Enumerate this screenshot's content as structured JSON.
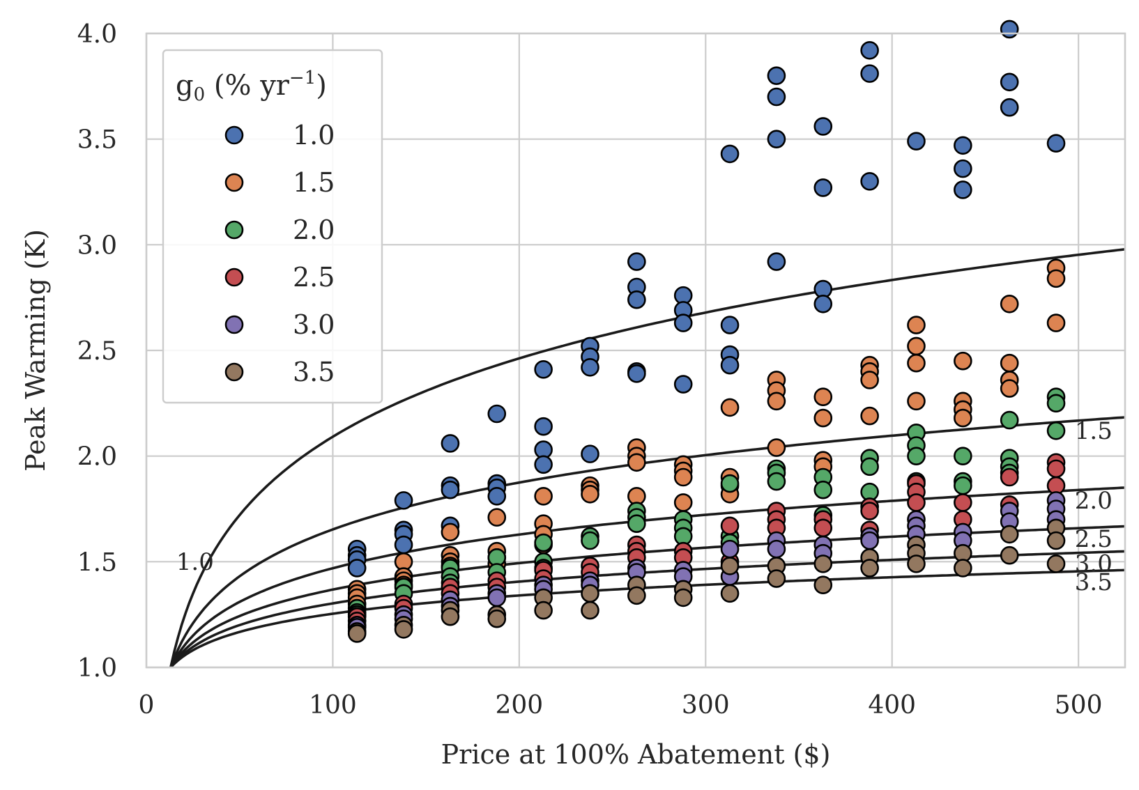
{
  "chart_data": {
    "type": "scatter",
    "xlabel": "Price at 100% Abatement ($)",
    "ylabel": "Peak Warming (K)",
    "xlim": [
      0,
      525
    ],
    "ylim": [
      1.0,
      4.0
    ],
    "xticks": [
      "0",
      "100",
      "200",
      "300",
      "400",
      "500"
    ],
    "yticks": [
      "1.0",
      "1.5",
      "2.0",
      "2.5",
      "3.0",
      "3.5",
      "4.0"
    ],
    "grid": true,
    "legend": {
      "title_main": "g",
      "title_sub": "0",
      "title_rest_prefix": " (% yr",
      "title_sup": "−1",
      "title_rest_suffix": ")",
      "placement": "top-left"
    },
    "series": [
      {
        "name": "1.0",
        "color": "#4c72b0",
        "points": [
          [
            113,
            1.56
          ],
          [
            113,
            1.53
          ],
          [
            113,
            1.51
          ],
          [
            113,
            1.47
          ],
          [
            138,
            1.79
          ],
          [
            138,
            1.65
          ],
          [
            138,
            1.63
          ],
          [
            138,
            1.58
          ],
          [
            163,
            2.06
          ],
          [
            163,
            1.86
          ],
          [
            163,
            1.84
          ],
          [
            163,
            1.67
          ],
          [
            188,
            2.2
          ],
          [
            188,
            1.87
          ],
          [
            188,
            1.85
          ],
          [
            188,
            1.81
          ],
          [
            213,
            2.41
          ],
          [
            213,
            2.14
          ],
          [
            213,
            2.03
          ],
          [
            213,
            1.96
          ],
          [
            238,
            2.52
          ],
          [
            238,
            2.47
          ],
          [
            238,
            2.42
          ],
          [
            238,
            2.01
          ],
          [
            263,
            2.92
          ],
          [
            263,
            2.8
          ],
          [
            263,
            2.74
          ],
          [
            263,
            2.4
          ],
          [
            263,
            2.39
          ],
          [
            288,
            2.76
          ],
          [
            288,
            2.69
          ],
          [
            288,
            2.63
          ],
          [
            288,
            2.34
          ],
          [
            313,
            3.43
          ],
          [
            313,
            2.62
          ],
          [
            313,
            2.48
          ],
          [
            313,
            2.43
          ],
          [
            338,
            3.8
          ],
          [
            338,
            3.7
          ],
          [
            338,
            3.5
          ],
          [
            338,
            2.92
          ],
          [
            363,
            3.56
          ],
          [
            363,
            3.27
          ],
          [
            363,
            2.79
          ],
          [
            363,
            2.72
          ],
          [
            388,
            3.92
          ],
          [
            388,
            3.81
          ],
          [
            388,
            3.3
          ],
          [
            413,
            3.49
          ],
          [
            438,
            3.47
          ],
          [
            438,
            3.36
          ],
          [
            438,
            3.26
          ],
          [
            463,
            4.02
          ],
          [
            463,
            3.77
          ],
          [
            463,
            3.65
          ],
          [
            488,
            3.48
          ]
        ]
      },
      {
        "name": "1.5",
        "color": "#dd8452",
        "points": [
          [
            113,
            1.37
          ],
          [
            113,
            1.35
          ],
          [
            113,
            1.33
          ],
          [
            113,
            1.3
          ],
          [
            138,
            1.5
          ],
          [
            138,
            1.43
          ],
          [
            138,
            1.41
          ],
          [
            138,
            1.39
          ],
          [
            163,
            1.64
          ],
          [
            163,
            1.53
          ],
          [
            163,
            1.5
          ],
          [
            163,
            1.48
          ],
          [
            188,
            1.71
          ],
          [
            188,
            1.55
          ],
          [
            188,
            1.52
          ],
          [
            188,
            1.49
          ],
          [
            213,
            1.81
          ],
          [
            213,
            1.68
          ],
          [
            213,
            1.63
          ],
          [
            213,
            1.58
          ],
          [
            238,
            1.86
          ],
          [
            238,
            1.84
          ],
          [
            238,
            1.82
          ],
          [
            263,
            2.04
          ],
          [
            263,
            2.0
          ],
          [
            263,
            1.97
          ],
          [
            263,
            1.81
          ],
          [
            288,
            1.96
          ],
          [
            288,
            1.93
          ],
          [
            288,
            1.9
          ],
          [
            288,
            1.78
          ],
          [
            313,
            2.23
          ],
          [
            313,
            1.9
          ],
          [
            313,
            1.86
          ],
          [
            313,
            1.82
          ],
          [
            338,
            2.36
          ],
          [
            338,
            2.31
          ],
          [
            338,
            2.26
          ],
          [
            338,
            2.04
          ],
          [
            363,
            2.28
          ],
          [
            363,
            2.18
          ],
          [
            363,
            1.98
          ],
          [
            363,
            1.95
          ],
          [
            388,
            2.43
          ],
          [
            388,
            2.4
          ],
          [
            388,
            2.36
          ],
          [
            388,
            2.19
          ],
          [
            413,
            2.62
          ],
          [
            413,
            2.52
          ],
          [
            413,
            2.44
          ],
          [
            413,
            2.26
          ],
          [
            438,
            2.45
          ],
          [
            438,
            2.26
          ],
          [
            438,
            2.22
          ],
          [
            438,
            2.18
          ],
          [
            463,
            2.72
          ],
          [
            463,
            2.44
          ],
          [
            463,
            2.36
          ],
          [
            463,
            2.32
          ],
          [
            488,
            2.89
          ],
          [
            488,
            2.84
          ],
          [
            488,
            2.63
          ]
        ]
      },
      {
        "name": "2.0",
        "color": "#55a868",
        "points": [
          [
            113,
            1.28
          ],
          [
            113,
            1.26
          ],
          [
            113,
            1.25
          ],
          [
            138,
            1.38
          ],
          [
            138,
            1.35
          ],
          [
            163,
            1.47
          ],
          [
            163,
            1.43
          ],
          [
            163,
            1.4
          ],
          [
            188,
            1.52
          ],
          [
            188,
            1.45
          ],
          [
            213,
            1.59
          ],
          [
            213,
            1.5
          ],
          [
            213,
            1.47
          ],
          [
            238,
            1.62
          ],
          [
            238,
            1.6
          ],
          [
            263,
            1.74
          ],
          [
            263,
            1.71
          ],
          [
            263,
            1.68
          ],
          [
            288,
            1.7
          ],
          [
            288,
            1.66
          ],
          [
            288,
            1.62
          ],
          [
            313,
            1.87
          ],
          [
            313,
            1.62
          ],
          [
            313,
            1.59
          ],
          [
            338,
            1.94
          ],
          [
            338,
            1.92
          ],
          [
            338,
            1.88
          ],
          [
            363,
            1.9
          ],
          [
            363,
            1.84
          ],
          [
            363,
            1.72
          ],
          [
            388,
            1.99
          ],
          [
            388,
            1.95
          ],
          [
            388,
            1.83
          ],
          [
            413,
            2.11
          ],
          [
            413,
            2.05
          ],
          [
            413,
            2.0
          ],
          [
            413,
            1.88
          ],
          [
            438,
            2.0
          ],
          [
            438,
            1.88
          ],
          [
            438,
            1.86
          ],
          [
            463,
            2.17
          ],
          [
            463,
            1.99
          ],
          [
            463,
            1.95
          ],
          [
            463,
            1.92
          ],
          [
            488,
            2.28
          ],
          [
            488,
            2.25
          ],
          [
            488,
            2.12
          ]
        ]
      },
      {
        "name": "2.5",
        "color": "#c44e52",
        "points": [
          [
            113,
            1.24
          ],
          [
            113,
            1.22
          ],
          [
            138,
            1.3
          ],
          [
            138,
            1.28
          ],
          [
            163,
            1.38
          ],
          [
            163,
            1.35
          ],
          [
            188,
            1.41
          ],
          [
            188,
            1.38
          ],
          [
            213,
            1.46
          ],
          [
            213,
            1.42
          ],
          [
            238,
            1.48
          ],
          [
            238,
            1.45
          ],
          [
            263,
            1.58
          ],
          [
            263,
            1.55
          ],
          [
            263,
            1.52
          ],
          [
            288,
            1.55
          ],
          [
            288,
            1.52
          ],
          [
            313,
            1.67
          ],
          [
            313,
            1.5
          ],
          [
            338,
            1.74
          ],
          [
            338,
            1.7
          ],
          [
            338,
            1.66
          ],
          [
            363,
            1.7
          ],
          [
            363,
            1.66
          ],
          [
            388,
            1.76
          ],
          [
            388,
            1.74
          ],
          [
            388,
            1.65
          ],
          [
            413,
            1.87
          ],
          [
            413,
            1.83
          ],
          [
            413,
            1.78
          ],
          [
            438,
            1.78
          ],
          [
            438,
            1.7
          ],
          [
            463,
            1.9
          ],
          [
            463,
            1.77
          ],
          [
            488,
            1.97
          ],
          [
            488,
            1.94
          ],
          [
            488,
            1.86
          ]
        ]
      },
      {
        "name": "3.0",
        "color": "#8172b3",
        "points": [
          [
            113,
            1.2
          ],
          [
            113,
            1.19
          ],
          [
            138,
            1.25
          ],
          [
            138,
            1.23
          ],
          [
            163,
            1.32
          ],
          [
            163,
            1.29
          ],
          [
            188,
            1.35
          ],
          [
            188,
            1.33
          ],
          [
            213,
            1.39
          ],
          [
            213,
            1.37
          ],
          [
            238,
            1.41
          ],
          [
            238,
            1.39
          ],
          [
            263,
            1.47
          ],
          [
            263,
            1.45
          ],
          [
            288,
            1.46
          ],
          [
            288,
            1.43
          ],
          [
            313,
            1.56
          ],
          [
            313,
            1.43
          ],
          [
            338,
            1.6
          ],
          [
            338,
            1.56
          ],
          [
            363,
            1.58
          ],
          [
            363,
            1.54
          ],
          [
            388,
            1.62
          ],
          [
            388,
            1.6
          ],
          [
            413,
            1.7
          ],
          [
            413,
            1.67
          ],
          [
            413,
            1.63
          ],
          [
            438,
            1.64
          ],
          [
            438,
            1.6
          ],
          [
            463,
            1.74
          ],
          [
            463,
            1.69
          ],
          [
            488,
            1.79
          ],
          [
            488,
            1.75
          ],
          [
            488,
            1.7
          ]
        ]
      },
      {
        "name": "3.5",
        "color": "#937860",
        "points": [
          [
            113,
            1.17
          ],
          [
            113,
            1.16
          ],
          [
            138,
            1.2
          ],
          [
            138,
            1.18
          ],
          [
            163,
            1.27
          ],
          [
            163,
            1.24
          ],
          [
            188,
            1.25
          ],
          [
            188,
            1.23
          ],
          [
            213,
            1.33
          ],
          [
            213,
            1.27
          ],
          [
            238,
            1.35
          ],
          [
            238,
            1.27
          ],
          [
            263,
            1.39
          ],
          [
            263,
            1.34
          ],
          [
            288,
            1.37
          ],
          [
            288,
            1.33
          ],
          [
            313,
            1.48
          ],
          [
            313,
            1.35
          ],
          [
            338,
            1.48
          ],
          [
            338,
            1.42
          ],
          [
            363,
            1.49
          ],
          [
            363,
            1.39
          ],
          [
            388,
            1.52
          ],
          [
            388,
            1.47
          ],
          [
            413,
            1.58
          ],
          [
            413,
            1.54
          ],
          [
            413,
            1.49
          ],
          [
            438,
            1.54
          ],
          [
            438,
            1.47
          ],
          [
            463,
            1.63
          ],
          [
            463,
            1.53
          ],
          [
            488,
            1.66
          ],
          [
            488,
            1.6
          ],
          [
            488,
            1.49
          ]
        ]
      }
    ],
    "curves": [
      {
        "label": "1.0",
        "k": 0.535
      },
      {
        "label": "1.5",
        "k": 0.32
      },
      {
        "label": "2.0",
        "k": 0.23
      },
      {
        "label": "2.5",
        "k": 0.1805
      },
      {
        "label": "3.0",
        "k": 0.1485
      },
      {
        "label": "3.5",
        "k": 0.1245
      }
    ]
  }
}
